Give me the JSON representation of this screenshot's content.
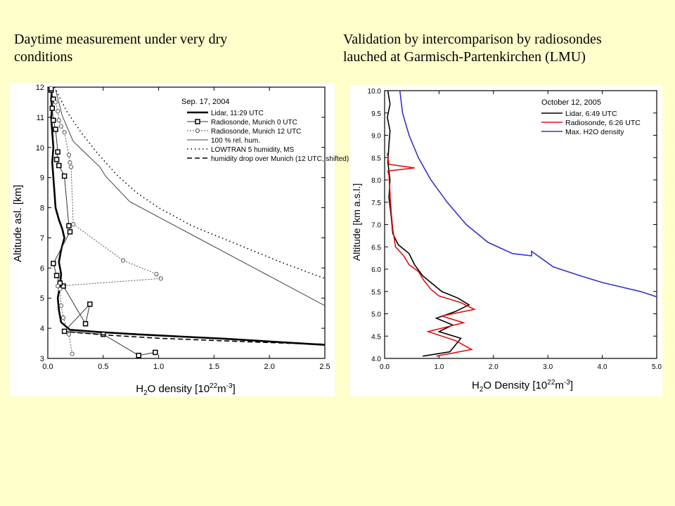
{
  "slide": {
    "left_caption": "Daytime measurement under very dry\nconditions",
    "right_caption": "Validation by intercomparison by radiosondes\nlauched at Garmisch-Partenkirchen (LMU)"
  },
  "chart_data": [
    {
      "type": "line",
      "title": "Sep. 17, 2004",
      "xlabel": "H2O density [10^22 m^-3]",
      "ylabel": "Altitude asl. [km]",
      "xlim": [
        0,
        2.5
      ],
      "ylim": [
        3,
        12
      ],
      "xticks": [
        "0.0",
        "0.5",
        "1.0",
        "1.5",
        "2.0",
        "2.5"
      ],
      "yticks": [
        "3",
        "4",
        "5",
        "6",
        "7",
        "8",
        "9",
        "10",
        "11",
        "12"
      ],
      "legend_position": "top-right",
      "series": [
        {
          "name": "Lidar, 11:29 UTC",
          "style": "thick-solid",
          "x": [
            2.5,
            1.6,
            0.8,
            0.45,
            0.2,
            0.12,
            0.1,
            0.09,
            0.11,
            0.12,
            0.1,
            0.12,
            0.15,
            0.13,
            0.1,
            0.07,
            0.06,
            0.05,
            0.04,
            0.05,
            0.04,
            0.03,
            0.04,
            0.03,
            0.04
          ],
          "y": [
            3.45,
            3.65,
            3.8,
            3.88,
            3.95,
            4.2,
            4.6,
            5.0,
            5.4,
            5.8,
            6.2,
            6.6,
            7.0,
            7.3,
            7.6,
            8.0,
            8.5,
            9.0,
            9.5,
            10.0,
            10.5,
            11.0,
            11.3,
            11.6,
            12.0
          ]
        },
        {
          "name": "Radiosonde, Munich   0 UTC",
          "style": "solid-square",
          "x": [
            0.97,
            0.82,
            0.5,
            0.15,
            0.38,
            0.34,
            0.14,
            0.11,
            0.08,
            0.05,
            0.2,
            0.19,
            0.15,
            0.1,
            0.08,
            0.09,
            0.07,
            0.05,
            0.04,
            0.05,
            0.03,
            0.03
          ],
          "y": [
            3.2,
            3.1,
            3.8,
            3.9,
            4.8,
            4.15,
            5.4,
            5.5,
            5.75,
            6.15,
            7.2,
            7.4,
            9.05,
            9.4,
            9.6,
            9.85,
            10.6,
            10.9,
            11.3,
            11.6,
            11.9,
            11.95
          ]
        },
        {
          "name": "Radiosonde, Munich 12 UTC",
          "style": "dotted-circle",
          "x": [
            0.22,
            0.19,
            0.14,
            0.12,
            0.11,
            0.09,
            1.02,
            0.98,
            0.68,
            0.23,
            0.21,
            0.2,
            0.19,
            0.15,
            0.12,
            0.1,
            0.09,
            0.07
          ],
          "y": [
            3.15,
            3.8,
            4.35,
            4.75,
            5.3,
            5.4,
            5.65,
            5.8,
            6.25,
            7.45,
            9.35,
            9.5,
            9.75,
            10.5,
            10.7,
            10.9,
            11.2,
            11.5
          ]
        },
        {
          "name": "100 % rel. hum.",
          "style": "thin-solid",
          "x": [
            0.07,
            0.13,
            0.23,
            0.47,
            0.52,
            0.74,
            2.5
          ],
          "y": [
            11.92,
            11.05,
            10.2,
            9.35,
            9.05,
            8.2,
            4.75
          ]
        },
        {
          "name": "LOWTRAN 5 humidity, MS",
          "style": "dotted",
          "x": [
            0.06,
            0.17,
            0.3,
            0.45,
            0.62,
            0.8,
            1.0,
            1.3,
            1.7,
            2.1,
            2.5
          ],
          "y": [
            12.0,
            11.2,
            10.5,
            9.8,
            9.1,
            8.5,
            8.0,
            7.4,
            6.8,
            6.2,
            5.65
          ]
        },
        {
          "name": "humidity drop over Munich (12 UTC, shifted)",
          "style": "dashed",
          "x": [
            0.2,
            0.5,
            1.0,
            1.6,
            2.2,
            2.5
          ],
          "y": [
            3.88,
            3.78,
            3.67,
            3.58,
            3.5,
            3.47
          ]
        }
      ]
    },
    {
      "type": "line",
      "title": "October 12, 2005",
      "xlabel": "H2O Density [10^22 m^-3]",
      "ylabel": "Altitude [km a.s.l.]",
      "xlim": [
        0,
        5
      ],
      "ylim": [
        4,
        10
      ],
      "xticks": [
        "0.0",
        "1.0",
        "2.0",
        "3.0",
        "4.0",
        "5.0"
      ],
      "yticks": [
        "4.0",
        "4.5",
        "5.0",
        "5.5",
        "6.0",
        "6.5",
        "7.0",
        "7.5",
        "8.0",
        "8.5",
        "9.0",
        "9.5",
        "10.0"
      ],
      "legend_position": "top-right",
      "series": [
        {
          "name": "Lidar, 6:49 UTC",
          "color": "#000000",
          "x": [
            0.7,
            1.2,
            1.4,
            1.0,
            1.25,
            0.95,
            1.3,
            1.55,
            1.35,
            1.05,
            0.85,
            0.7,
            0.55,
            0.45,
            0.25,
            0.15,
            0.12,
            0.08,
            0.1,
            0.06,
            0.08,
            0.1,
            0.05,
            0.1,
            0.06
          ],
          "y": [
            4.05,
            4.15,
            4.45,
            4.6,
            4.75,
            4.9,
            5.05,
            5.2,
            5.35,
            5.5,
            5.7,
            5.85,
            6.1,
            6.35,
            6.55,
            6.8,
            7.2,
            7.6,
            8.0,
            8.4,
            8.8,
            9.1,
            9.4,
            9.7,
            10.0
          ]
        },
        {
          "name": "Radiosonde, 6:26 UTC",
          "color": "#e01010",
          "x": [
            0.95,
            1.6,
            1.3,
            0.8,
            1.45,
            1.05,
            1.65,
            1.4,
            1.0,
            0.85,
            0.72,
            0.62,
            0.45,
            0.35,
            0.2,
            0.15,
            0.12,
            0.1,
            0.08,
            0.06,
            0.55,
            0.08,
            0.05
          ],
          "y": [
            4.05,
            4.2,
            4.4,
            4.6,
            4.8,
            4.95,
            5.1,
            5.25,
            5.4,
            5.55,
            5.75,
            5.95,
            6.1,
            6.3,
            6.5,
            6.9,
            7.3,
            7.7,
            8.1,
            8.2,
            8.27,
            8.35,
            8.6
          ]
        },
        {
          "name": "Max. H2O density",
          "color": "#3333cc",
          "x": [
            0.28,
            0.33,
            0.45,
            0.62,
            0.85,
            1.15,
            1.5,
            1.9,
            2.35,
            2.7,
            2.7,
            3.1,
            3.6,
            4.0,
            4.35,
            4.7,
            5.0
          ],
          "y": [
            10.0,
            9.5,
            9.0,
            8.5,
            8.0,
            7.5,
            7.0,
            6.6,
            6.35,
            6.3,
            6.4,
            6.05,
            5.85,
            5.7,
            5.6,
            5.5,
            5.38
          ]
        }
      ]
    }
  ]
}
